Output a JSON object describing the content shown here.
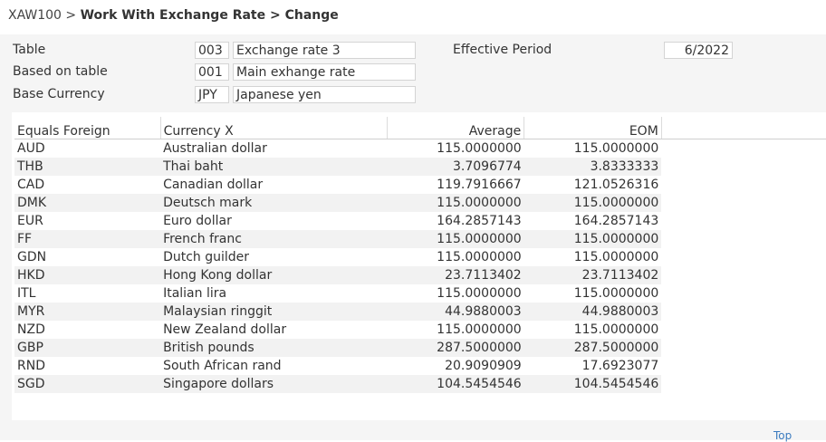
{
  "header": {
    "program": "XAW100",
    "separator": ">",
    "path": "Work With Exchange Rate > Change"
  },
  "form": {
    "table_label": "Table",
    "table_code": "003",
    "table_name": "Exchange rate 3",
    "based_label": "Based on table",
    "based_code": "001",
    "based_name": "Main exhange rate",
    "currency_label": "Base Currency",
    "currency_code": "JPY",
    "currency_name": "Japanese yen",
    "period_label": "Effective Period",
    "period_value": "6/2022"
  },
  "grid": {
    "columns": [
      "Equals Foreign",
      "Currency X",
      "Average",
      "EOM"
    ],
    "rows": [
      [
        "AUD",
        "Australian dollar",
        "115.0000000",
        "115.0000000"
      ],
      [
        "THB",
        "Thai baht",
        "3.7096774",
        "3.8333333"
      ],
      [
        "CAD",
        "Canadian dollar",
        "119.7916667",
        "121.0526316"
      ],
      [
        "DMK",
        "Deutsch mark",
        "115.0000000",
        "115.0000000"
      ],
      [
        "EUR",
        "Euro dollar",
        "164.2857143",
        "164.2857143"
      ],
      [
        "FF",
        "French franc",
        "115.0000000",
        "115.0000000"
      ],
      [
        "GDN",
        "Dutch guilder",
        "115.0000000",
        "115.0000000"
      ],
      [
        "HKD",
        "Hong Kong dollar",
        "23.7113402",
        "23.7113402"
      ],
      [
        "ITL",
        "Italian lira",
        "115.0000000",
        "115.0000000"
      ],
      [
        "MYR",
        "Malaysian ringgit",
        "44.9880003",
        "44.9880003"
      ],
      [
        "NZD",
        "New Zealand dollar",
        "115.0000000",
        "115.0000000"
      ],
      [
        "GBP",
        "British pounds",
        "287.5000000",
        "287.5000000"
      ],
      [
        "RND",
        "South African rand",
        "20.9090909",
        "17.6923077"
      ],
      [
        "SGD",
        "Singapore dollars",
        "104.5454546",
        "104.5454546"
      ]
    ]
  },
  "footer": {
    "top_link": "Top"
  }
}
